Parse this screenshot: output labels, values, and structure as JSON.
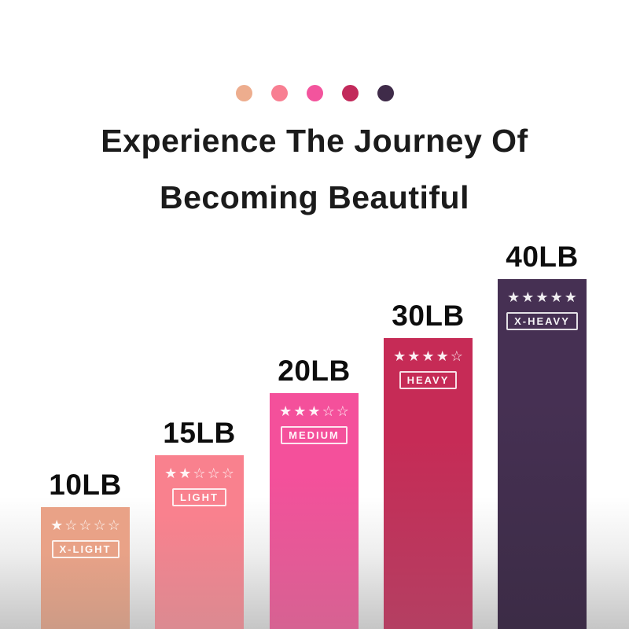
{
  "title": {
    "line1": "Experience The Journey Of",
    "line2": "Becoming Beautiful"
  },
  "dots": [
    {
      "name": "x-light-dot",
      "color": "#EDAD8E"
    },
    {
      "name": "light-dot",
      "color": "#F87F92"
    },
    {
      "name": "medium-dot",
      "color": "#F3549D"
    },
    {
      "name": "heavy-dot",
      "color": "#C22A5B"
    },
    {
      "name": "x-heavy-dot",
      "color": "#3F2B49"
    }
  ],
  "bars": [
    {
      "weight": "10LB",
      "level": "X-LIGHT",
      "rating": 1,
      "stars_display": "★☆☆☆☆",
      "color_top": "#E9A287",
      "color_bottom": "#CD9B86"
    },
    {
      "weight": "15LB",
      "level": "LIGHT",
      "rating": 2,
      "stars_display": "★★☆☆☆",
      "color_top": "#F9818E",
      "color_bottom": "#DB8A91"
    },
    {
      "weight": "20LB",
      "level": "MEDIUM",
      "rating": 3,
      "stars_display": "★★★☆☆",
      "color_top": "#F4509B",
      "color_bottom": "#D66292"
    },
    {
      "weight": "30LB",
      "level": "HEAVY",
      "rating": 4,
      "stars_display": "★★★★☆",
      "color_top": "#C62B56",
      "color_bottom": "#B43F62"
    },
    {
      "weight": "40LB",
      "level": "X-HEAVY",
      "rating": 5,
      "stars_display": "★★★★★",
      "color_top": "#463053",
      "color_bottom": "#3C2C46"
    }
  ],
  "chart_data": {
    "type": "bar",
    "title": "Experience The Journey Of Becoming Beautiful",
    "categories": [
      "X-LIGHT",
      "LIGHT",
      "MEDIUM",
      "HEAVY",
      "X-HEAVY"
    ],
    "values": [
      10,
      15,
      20,
      30,
      40
    ],
    "unit": "LB",
    "data_labels": [
      "10LB",
      "15LB",
      "20LB",
      "30LB",
      "40LB"
    ],
    "star_ratings": [
      1,
      2,
      3,
      4,
      5
    ],
    "bar_colors": [
      "#E9A287",
      "#F9818E",
      "#F4509B",
      "#C62B56",
      "#463053"
    ],
    "axes": "none",
    "grid": false,
    "legend_position": "none",
    "layout": "ascending-staircase, bars anchored to bottom edge"
  }
}
